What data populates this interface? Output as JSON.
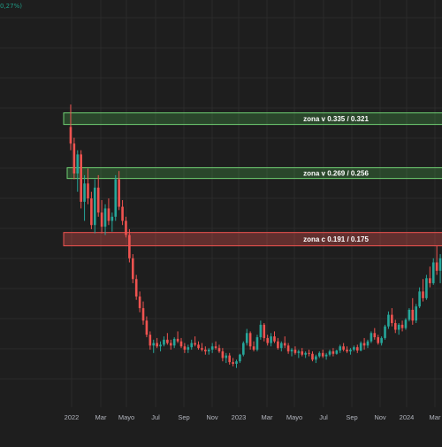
{
  "top_label": "0,27%)",
  "colors": {
    "background": "#1e1e1e",
    "grid": "#2b2b2b",
    "up": "#26a69a",
    "down": "#ef5350",
    "zone_v_fill": "rgba(76,175,80,0.28)",
    "zone_v_stroke": "#6fcf72",
    "zone_c_fill": "rgba(239,83,80,0.32)",
    "zone_c_stroke": "#ef5350",
    "axis_text": "#b2b5be"
  },
  "chart_data": {
    "type": "candlestick",
    "x_axis_labels": [
      "2022",
      "Mar",
      "Mayo",
      "Jul",
      "Sep",
      "Nov",
      "2023",
      "Mar",
      "Mayo",
      "Jul",
      "Sep",
      "Nov",
      "2024",
      "Mar"
    ],
    "zones": [
      {
        "label": "zona v 0.335 / 0.321",
        "high": 0.335,
        "low": 0.321,
        "kind": "v"
      },
      {
        "label": "zona v 0.269 / 0.256",
        "high": 0.269,
        "low": 0.256,
        "kind": "v"
      },
      {
        "label": "zona c 0.191 / 0.175",
        "high": 0.191,
        "low": 0.175,
        "kind": "c"
      }
    ],
    "ylim": [
      0.0,
      0.36
    ],
    "grid": true,
    "candles_note": "weekly candles, approximate",
    "candles": [
      [
        0.318,
        0.345,
        0.29,
        0.298
      ],
      [
        0.298,
        0.305,
        0.255,
        0.262
      ],
      [
        0.262,
        0.29,
        0.24,
        0.285
      ],
      [
        0.285,
        0.29,
        0.22,
        0.228
      ],
      [
        0.228,
        0.26,
        0.205,
        0.25
      ],
      [
        0.25,
        0.268,
        0.225,
        0.232
      ],
      [
        0.232,
        0.24,
        0.195,
        0.2
      ],
      [
        0.2,
        0.255,
        0.19,
        0.245
      ],
      [
        0.245,
        0.26,
        0.21,
        0.215
      ],
      [
        0.215,
        0.23,
        0.19,
        0.198
      ],
      [
        0.198,
        0.225,
        0.188,
        0.22
      ],
      [
        0.22,
        0.232,
        0.2,
        0.205
      ],
      [
        0.205,
        0.215,
        0.192,
        0.21
      ],
      [
        0.21,
        0.26,
        0.205,
        0.255
      ],
      [
        0.255,
        0.265,
        0.218,
        0.222
      ],
      [
        0.222,
        0.23,
        0.2,
        0.205
      ],
      [
        0.205,
        0.21,
        0.185,
        0.188
      ],
      [
        0.188,
        0.195,
        0.155,
        0.16
      ],
      [
        0.16,
        0.165,
        0.13,
        0.135
      ],
      [
        0.135,
        0.14,
        0.11,
        0.114
      ],
      [
        0.114,
        0.12,
        0.095,
        0.1
      ],
      [
        0.1,
        0.108,
        0.08,
        0.085
      ],
      [
        0.085,
        0.09,
        0.065,
        0.068
      ],
      [
        0.068,
        0.072,
        0.05,
        0.055
      ],
      [
        0.055,
        0.062,
        0.046,
        0.058
      ],
      [
        0.058,
        0.064,
        0.052,
        0.054
      ],
      [
        0.054,
        0.06,
        0.048,
        0.056
      ],
      [
        0.056,
        0.066,
        0.054,
        0.062
      ],
      [
        0.062,
        0.07,
        0.056,
        0.058
      ],
      [
        0.058,
        0.062,
        0.05,
        0.055
      ],
      [
        0.055,
        0.065,
        0.052,
        0.063
      ],
      [
        0.063,
        0.072,
        0.058,
        0.06
      ],
      [
        0.06,
        0.064,
        0.052,
        0.054
      ],
      [
        0.054,
        0.058,
        0.046,
        0.05
      ],
      [
        0.05,
        0.056,
        0.046,
        0.053
      ],
      [
        0.053,
        0.062,
        0.05,
        0.058
      ],
      [
        0.058,
        0.066,
        0.054,
        0.056
      ],
      [
        0.056,
        0.06,
        0.05,
        0.052
      ],
      [
        0.052,
        0.058,
        0.048,
        0.05
      ],
      [
        0.05,
        0.054,
        0.044,
        0.048
      ],
      [
        0.048,
        0.052,
        0.044,
        0.05
      ],
      [
        0.05,
        0.058,
        0.046,
        0.054
      ],
      [
        0.054,
        0.06,
        0.05,
        0.052
      ],
      [
        0.052,
        0.056,
        0.046,
        0.048
      ],
      [
        0.048,
        0.052,
        0.036,
        0.04
      ],
      [
        0.04,
        0.046,
        0.034,
        0.043
      ],
      [
        0.043,
        0.046,
        0.032,
        0.035
      ],
      [
        0.035,
        0.04,
        0.03,
        0.033
      ],
      [
        0.033,
        0.038,
        0.028,
        0.036
      ],
      [
        0.036,
        0.045,
        0.034,
        0.044
      ],
      [
        0.044,
        0.06,
        0.042,
        0.058
      ],
      [
        0.058,
        0.075,
        0.055,
        0.07
      ],
      [
        0.07,
        0.072,
        0.05,
        0.054
      ],
      [
        0.054,
        0.06,
        0.048,
        0.05
      ],
      [
        0.05,
        0.068,
        0.048,
        0.065
      ],
      [
        0.065,
        0.085,
        0.062,
        0.08
      ],
      [
        0.08,
        0.082,
        0.06,
        0.064
      ],
      [
        0.064,
        0.068,
        0.055,
        0.058
      ],
      [
        0.058,
        0.07,
        0.054,
        0.066
      ],
      [
        0.066,
        0.072,
        0.058,
        0.06
      ],
      [
        0.06,
        0.064,
        0.05,
        0.052
      ],
      [
        0.052,
        0.06,
        0.048,
        0.058
      ],
      [
        0.058,
        0.066,
        0.052,
        0.055
      ],
      [
        0.055,
        0.058,
        0.045,
        0.048
      ],
      [
        0.048,
        0.052,
        0.042,
        0.05
      ],
      [
        0.05,
        0.054,
        0.044,
        0.046
      ],
      [
        0.046,
        0.05,
        0.04,
        0.048
      ],
      [
        0.048,
        0.052,
        0.042,
        0.044
      ],
      [
        0.044,
        0.048,
        0.04,
        0.046
      ],
      [
        0.046,
        0.05,
        0.042,
        0.045
      ],
      [
        0.045,
        0.048,
        0.036,
        0.038
      ],
      [
        0.038,
        0.044,
        0.034,
        0.042
      ],
      [
        0.042,
        0.048,
        0.04,
        0.046
      ],
      [
        0.046,
        0.05,
        0.04,
        0.042
      ],
      [
        0.042,
        0.046,
        0.038,
        0.044
      ],
      [
        0.044,
        0.05,
        0.042,
        0.048
      ],
      [
        0.048,
        0.052,
        0.042,
        0.045
      ],
      [
        0.045,
        0.05,
        0.044,
        0.049
      ],
      [
        0.049,
        0.056,
        0.046,
        0.054
      ],
      [
        0.054,
        0.058,
        0.048,
        0.05
      ],
      [
        0.05,
        0.054,
        0.046,
        0.048
      ],
      [
        0.048,
        0.052,
        0.044,
        0.05
      ],
      [
        0.05,
        0.055,
        0.048,
        0.053
      ],
      [
        0.053,
        0.056,
        0.046,
        0.049
      ],
      [
        0.049,
        0.06,
        0.048,
        0.058
      ],
      [
        0.058,
        0.064,
        0.05,
        0.055
      ],
      [
        0.055,
        0.062,
        0.052,
        0.06
      ],
      [
        0.06,
        0.072,
        0.058,
        0.07
      ],
      [
        0.07,
        0.076,
        0.062,
        0.065
      ],
      [
        0.065,
        0.068,
        0.056,
        0.058
      ],
      [
        0.058,
        0.066,
        0.055,
        0.064
      ],
      [
        0.064,
        0.08,
        0.062,
        0.078
      ],
      [
        0.078,
        0.096,
        0.075,
        0.092
      ],
      [
        0.092,
        0.1,
        0.078,
        0.082
      ],
      [
        0.082,
        0.086,
        0.07,
        0.074
      ],
      [
        0.074,
        0.082,
        0.068,
        0.08
      ],
      [
        0.08,
        0.085,
        0.072,
        0.076
      ],
      [
        0.076,
        0.088,
        0.074,
        0.086
      ],
      [
        0.086,
        0.1,
        0.084,
        0.098
      ],
      [
        0.098,
        0.112,
        0.08,
        0.085
      ],
      [
        0.085,
        0.105,
        0.082,
        0.102
      ],
      [
        0.102,
        0.125,
        0.1,
        0.12
      ],
      [
        0.12,
        0.135,
        0.108,
        0.112
      ],
      [
        0.112,
        0.14,
        0.11,
        0.136
      ],
      [
        0.136,
        0.15,
        0.125,
        0.13
      ],
      [
        0.13,
        0.16,
        0.128,
        0.155
      ],
      [
        0.155,
        0.175,
        0.14,
        0.145
      ],
      [
        0.145,
        0.165,
        0.13,
        0.16
      ]
    ]
  }
}
